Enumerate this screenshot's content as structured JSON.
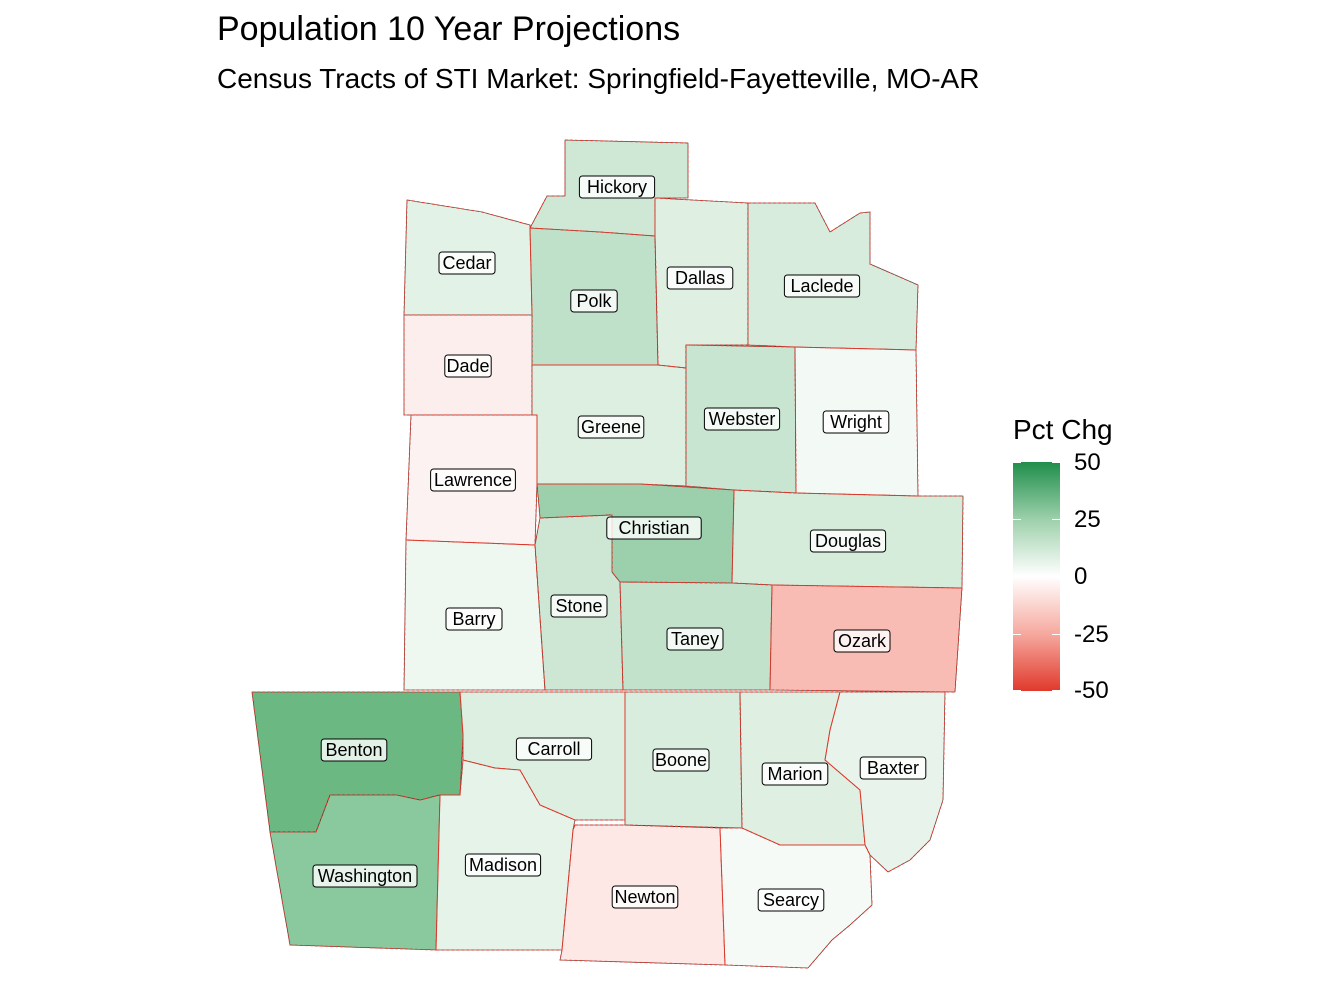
{
  "title": "Population 10 Year Projections",
  "subtitle": "Census Tracts of STI Market: Springfield-Fayetteville, MO-AR",
  "legend": {
    "title": "Pct Chg",
    "ticks": [
      "50",
      "25",
      "0",
      "-25",
      "-50"
    ],
    "high_color": "#1f8e4b",
    "mid_color": "#ffffff",
    "low_color": "#e0392c"
  },
  "counties": [
    {
      "name": "Hickory",
      "fill": "#cfe8d6"
    },
    {
      "name": "Cedar",
      "fill": "#e3f2e7"
    },
    {
      "name": "Polk",
      "fill": "#bfe0c9"
    },
    {
      "name": "Dallas",
      "fill": "#dff0e3"
    },
    {
      "name": "Laclede",
      "fill": "#d8ecdd"
    },
    {
      "name": "Dade",
      "fill": "#fdeeee"
    },
    {
      "name": "Greene",
      "fill": "#dcefe1"
    },
    {
      "name": "Webster",
      "fill": "#c8e5d1"
    },
    {
      "name": "Wright",
      "fill": "#f3f9f4"
    },
    {
      "name": "Lawrence",
      "fill": "#fbf2f1"
    },
    {
      "name": "Christian",
      "fill": "#9ccfac"
    },
    {
      "name": "Douglas",
      "fill": "#d6ecdb"
    },
    {
      "name": "Barry",
      "fill": "#eef7f0"
    },
    {
      "name": "Stone",
      "fill": "#cde7d4"
    },
    {
      "name": "Taney",
      "fill": "#c2e2cb"
    },
    {
      "name": "Ozark",
      "fill": "#f9bcb4"
    },
    {
      "name": "Benton",
      "fill": "#6bb883"
    },
    {
      "name": "Carroll",
      "fill": "#dcefe1"
    },
    {
      "name": "Boone",
      "fill": "#d8eddd"
    },
    {
      "name": "Marion",
      "fill": "#dff0e3"
    },
    {
      "name": "Baxter",
      "fill": "#e8f4eb"
    },
    {
      "name": "Washington",
      "fill": "#8ac89d"
    },
    {
      "name": "Madison",
      "fill": "#e6f3e9"
    },
    {
      "name": "Newton",
      "fill": "#fde8e6"
    },
    {
      "name": "Searcy",
      "fill": "#f6faf7"
    }
  ]
}
